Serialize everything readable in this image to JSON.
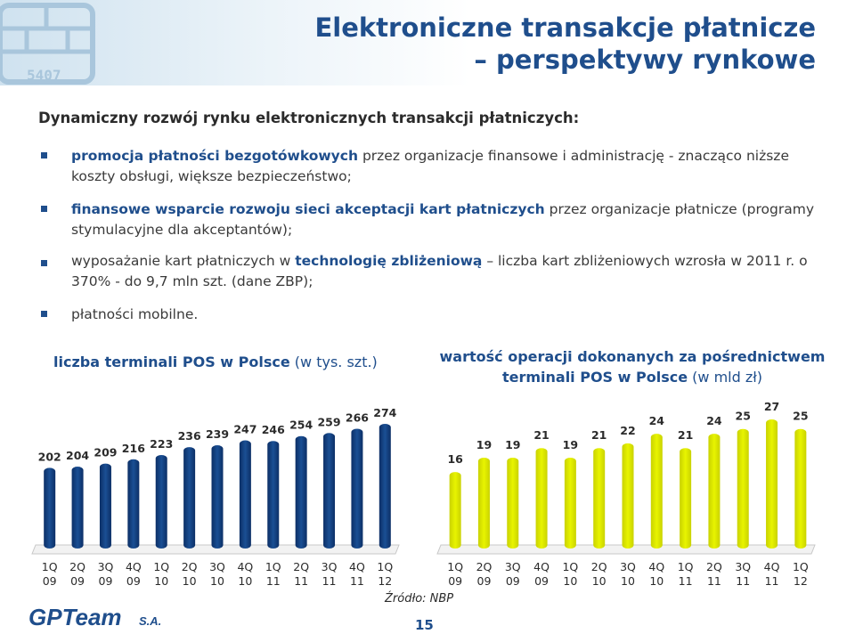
{
  "header": {
    "title_line1": "Elektroniczne transakcje płatnicze",
    "title_line2": "– perspektywy rynkowe",
    "chip_text": "5407"
  },
  "intro": "Dynamiczny rozwój rynku elektronicznych transakcji płatniczych:",
  "bullets": [
    {
      "bold": "promocja płatności bezgotówkowych",
      "text": " przez organizacje finansowe i administrację - znacząco niższe koszty obsługi, większe bezpieczeństwo;"
    },
    {
      "bold": "finansowe wsparcie rozwoju sieci akceptacji kart płatniczych",
      "text": " przez organizacje płatnicze (programy stymulacyjne dla akceptantów);"
    },
    {
      "pre": "wyposażanie kart płatniczych w ",
      "bold": "technologię zbliżeniową",
      "text": " – liczba kart zbliżeniowych wzrosła w 2011 r. o 370% - do 9,7 mln szt. (dane ZBP);"
    },
    {
      "text": "płatności mobilne."
    }
  ],
  "chart_data": [
    {
      "type": "bar",
      "title": "liczba terminali POS w Polsce",
      "title_suffix": " (w tys. szt.)",
      "categories": [
        "1Q 09",
        "2Q 09",
        "3Q 09",
        "4Q 09",
        "1Q 10",
        "2Q 10",
        "3Q 10",
        "4Q 10",
        "1Q 11",
        "2Q 11",
        "3Q 11",
        "4Q 11",
        "1Q 12"
      ],
      "values": [
        202,
        204,
        209,
        216,
        223,
        236,
        239,
        247,
        246,
        254,
        259,
        266,
        274
      ]
    },
    {
      "type": "bar",
      "title": "wartość operacji dokonanych  za pośrednictwem terminali POS w Polsce",
      "title_suffix": " (w mld zł)",
      "categories": [
        "1Q 09",
        "2Q 09",
        "3Q 09",
        "4Q 09",
        "1Q 10",
        "2Q 10",
        "3Q 10",
        "4Q 10",
        "1Q 11",
        "2Q 11",
        "3Q 11",
        "4Q 11",
        "1Q 12"
      ],
      "values": [
        16,
        19,
        19,
        21,
        19,
        21,
        22,
        24,
        21,
        24,
        25,
        27,
        25
      ]
    }
  ],
  "source": "Źródło: NBP",
  "page_number": "15",
  "footer_logo": "GPTeam",
  "footer_logo_suffix": "S.A.",
  "colors": {
    "accent": "#1f4e8c",
    "bar_left": "#1a4f94",
    "bar_right": "#e8f400"
  }
}
